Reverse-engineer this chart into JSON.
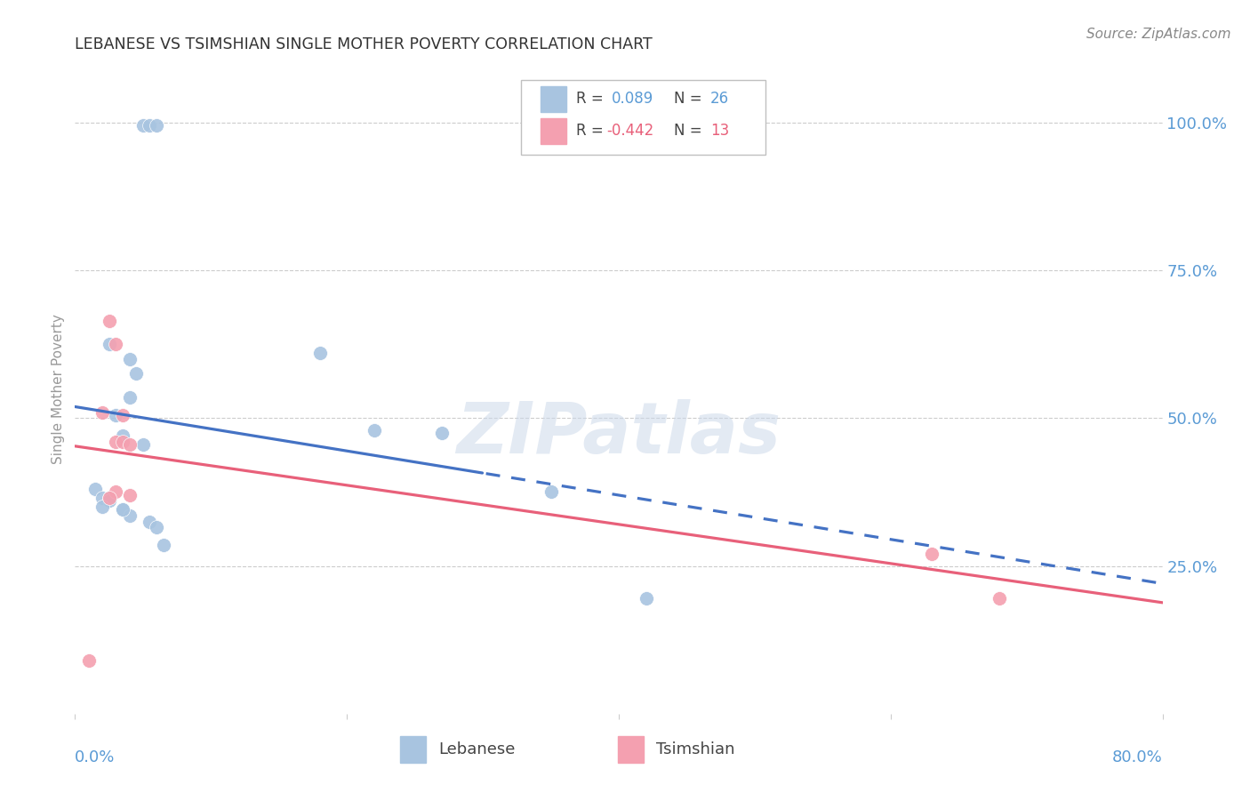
{
  "title": "LEBANESE VS TSIMSHIAN SINGLE MOTHER POVERTY CORRELATION CHART",
  "source": "Source: ZipAtlas.com",
  "ylabel": "Single Mother Poverty",
  "xlim": [
    0.0,
    0.8
  ],
  "ylim": [
    0.0,
    1.1
  ],
  "watermark": "ZIPatlas",
  "lebanese_R": 0.089,
  "lebanese_N": 26,
  "tsimshian_R": -0.442,
  "tsimshian_N": 13,
  "lebanese_color": "#a8c4e0",
  "tsimshian_color": "#f4a0b0",
  "lebanese_line_color": "#4472c4",
  "tsimshian_line_color": "#e8607a",
  "lebanese_x": [
    0.05,
    0.055,
    0.06,
    0.025,
    0.04,
    0.045,
    0.04,
    0.03,
    0.035,
    0.015,
    0.02,
    0.025,
    0.025,
    0.02,
    0.035,
    0.04,
    0.055,
    0.06,
    0.065,
    0.18,
    0.27,
    0.22,
    0.35,
    0.42,
    0.035,
    0.05
  ],
  "lebanese_y": [
    0.995,
    0.995,
    0.995,
    0.625,
    0.6,
    0.575,
    0.535,
    0.505,
    0.47,
    0.38,
    0.365,
    0.365,
    0.36,
    0.35,
    0.345,
    0.335,
    0.325,
    0.315,
    0.285,
    0.61,
    0.475,
    0.48,
    0.375,
    0.195,
    0.345,
    0.455
  ],
  "tsimshian_x": [
    0.01,
    0.025,
    0.03,
    0.035,
    0.03,
    0.035,
    0.04,
    0.03,
    0.04,
    0.025,
    0.63,
    0.68,
    0.02
  ],
  "tsimshian_y": [
    0.09,
    0.665,
    0.625,
    0.505,
    0.46,
    0.46,
    0.455,
    0.375,
    0.37,
    0.365,
    0.27,
    0.195,
    0.51
  ],
  "grid_color": "#cccccc",
  "background_color": "#ffffff",
  "title_color": "#333333",
  "tick_label_color": "#5b9bd5",
  "source_color": "#888888"
}
